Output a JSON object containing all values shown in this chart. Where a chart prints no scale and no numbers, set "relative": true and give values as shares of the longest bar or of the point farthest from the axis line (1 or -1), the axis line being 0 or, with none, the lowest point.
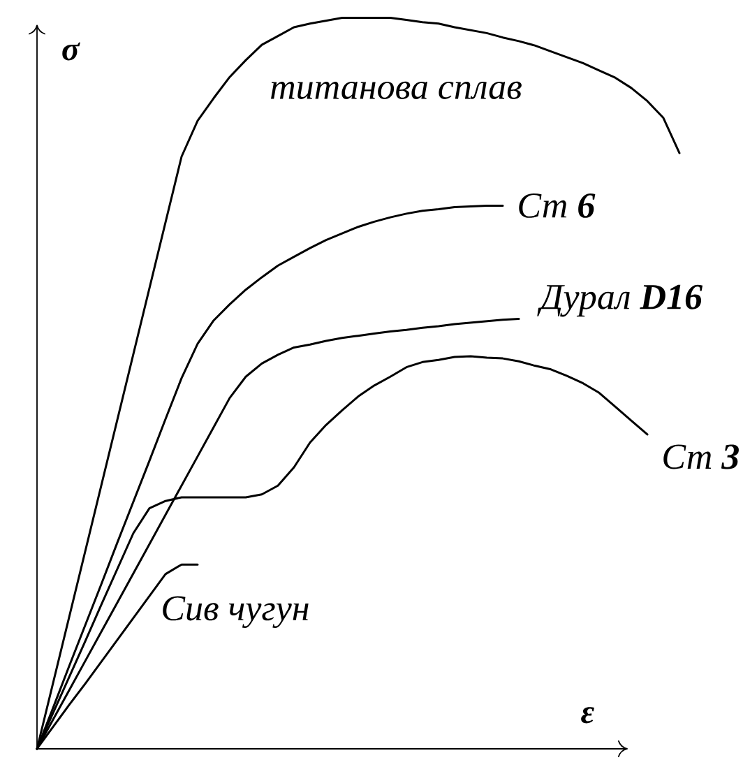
{
  "chart_data": {
    "type": "line",
    "relative": true,
    "xlabel": "ε",
    "ylabel": "σ",
    "line_style": "solid",
    "categories": [
      null,
      null,
      null,
      null,
      null,
      null,
      null,
      null,
      null,
      null,
      null,
      null,
      null,
      null,
      null,
      null,
      null,
      null,
      null,
      null,
      null,
      null,
      null,
      null,
      null,
      null,
      null,
      null,
      null,
      null,
      null,
      null,
      null,
      null,
      null,
      null,
      null,
      null,
      null,
      null,
      null
    ],
    "series": [
      {
        "name": "титанова сплав",
        "color": "#000000",
        "values": [
          0,
          0.09,
          0.18,
          0.27,
          0.36,
          0.45,
          0.54,
          0.63,
          0.72,
          0.81,
          0.859,
          0.89,
          0.919,
          0.942,
          0.963,
          0.975,
          0.987,
          0.992,
          0.996,
          1.0,
          1.0,
          1.0,
          1.0,
          0.997,
          0.994,
          0.992,
          0.987,
          0.983,
          0.979,
          0.973,
          0.968,
          0.962,
          0.954,
          0.946,
          0.938,
          0.928,
          0.918,
          0.904,
          0.886,
          0.863,
          0.815
        ]
      },
      {
        "name": "Ст **6**",
        "color": "#000000",
        "values": [
          0,
          0.056,
          0.113,
          0.169,
          0.225,
          0.282,
          0.338,
          0.394,
          0.451,
          0.507,
          0.554,
          0.586,
          0.608,
          0.628,
          0.645,
          0.661,
          0.673,
          0.685,
          0.696,
          0.705,
          0.714,
          0.721,
          0.727,
          0.732,
          0.736,
          0.738,
          0.741,
          0.742,
          0.743,
          0.743,
          null,
          null,
          null,
          null,
          null,
          null,
          null,
          null,
          null,
          null,
          null
        ]
      },
      {
        "name": "Дурал **D16**",
        "color": "#000000",
        "values": [
          0,
          0.04,
          0.08,
          0.12,
          0.16,
          0.2,
          0.24,
          0.28,
          0.32,
          0.36,
          0.4,
          0.44,
          0.48,
          0.509,
          0.527,
          0.539,
          0.549,
          0.553,
          0.558,
          0.562,
          0.565,
          0.568,
          0.571,
          0.573,
          0.576,
          0.578,
          0.581,
          0.583,
          0.585,
          0.587,
          0.588,
          null,
          null,
          null,
          null,
          null,
          null,
          null,
          null,
          null,
          null
        ]
      },
      {
        "name": "Ст **3**",
        "color": "#000000",
        "values": [
          0,
          0.049,
          0.098,
          0.147,
          0.197,
          0.246,
          0.295,
          0.329,
          0.339,
          0.344,
          0.344,
          0.344,
          0.344,
          0.344,
          0.348,
          0.36,
          0.385,
          0.419,
          0.443,
          0.463,
          0.482,
          0.497,
          0.509,
          0.522,
          0.529,
          0.532,
          0.536,
          0.537,
          0.535,
          0.534,
          0.53,
          0.524,
          0.519,
          0.51,
          0.5,
          0.487,
          0.468,
          0.449,
          0.43,
          null,
          null
        ]
      },
      {
        "name": "Сив чугун",
        "color": "#000000",
        "values": [
          0,
          0.03,
          0.06,
          0.089,
          0.119,
          0.149,
          0.179,
          0.209,
          0.239,
          0.252,
          0.252,
          null,
          null,
          null,
          null,
          null,
          null,
          null,
          null,
          null,
          null,
          null,
          null,
          null,
          null,
          null,
          null,
          null,
          null,
          null,
          null,
          null,
          null,
          null,
          null,
          null,
          null,
          null,
          null,
          null,
          null
        ]
      }
    ]
  }
}
